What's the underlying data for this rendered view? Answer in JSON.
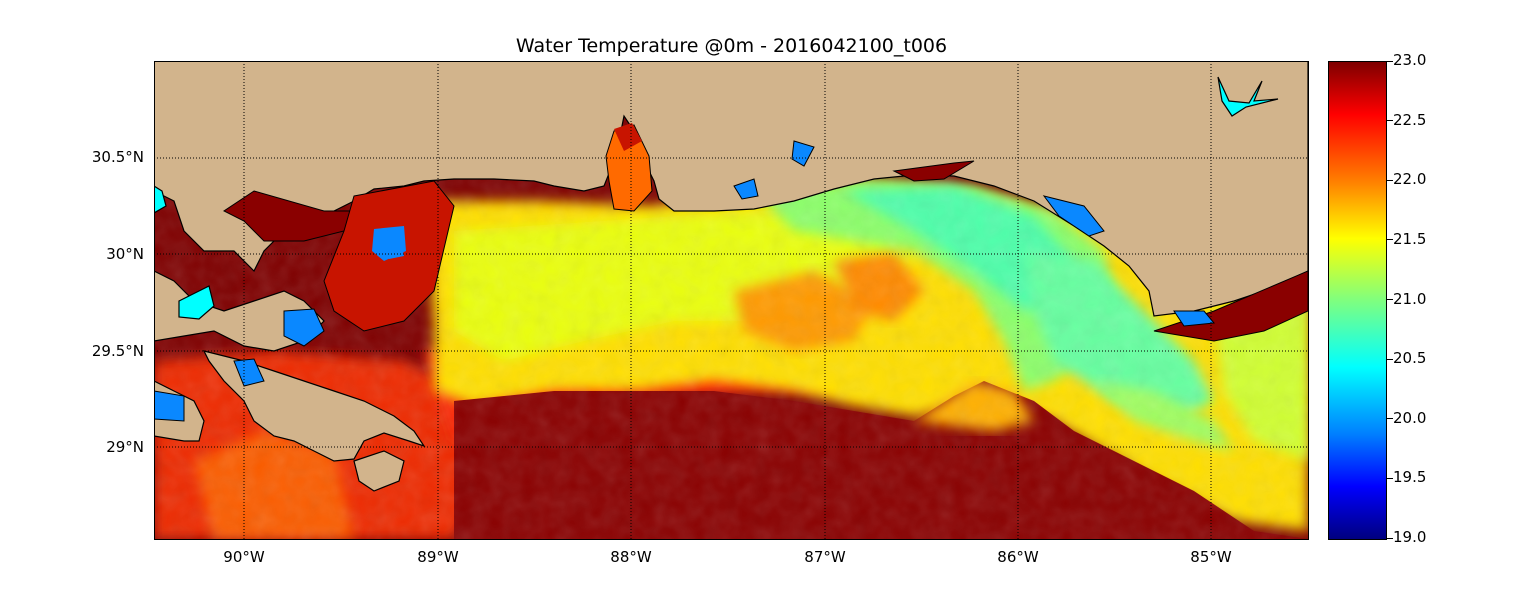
{
  "title": "Water Temperature @0m - 2016042100_t006",
  "map": {
    "lat_labels": [
      "30.5°N",
      "30°N",
      "29.5°N",
      "29°N"
    ],
    "lon_labels": [
      "90°W",
      "89°W",
      "88°W",
      "87°W",
      "86°W",
      "85°W"
    ],
    "colors": {
      "land": "#d2b48c",
      "lake": "#00ffff",
      "coastline": "#000000",
      "gridline": "#000000"
    }
  },
  "colorbar": {
    "ticks": [
      "23.0",
      "22.5",
      "22.0",
      "21.5",
      "21.0",
      "20.5",
      "20.0",
      "19.5",
      "19.0"
    ],
    "min": 19.0,
    "max": 23.0,
    "colormap": "jet"
  }
}
